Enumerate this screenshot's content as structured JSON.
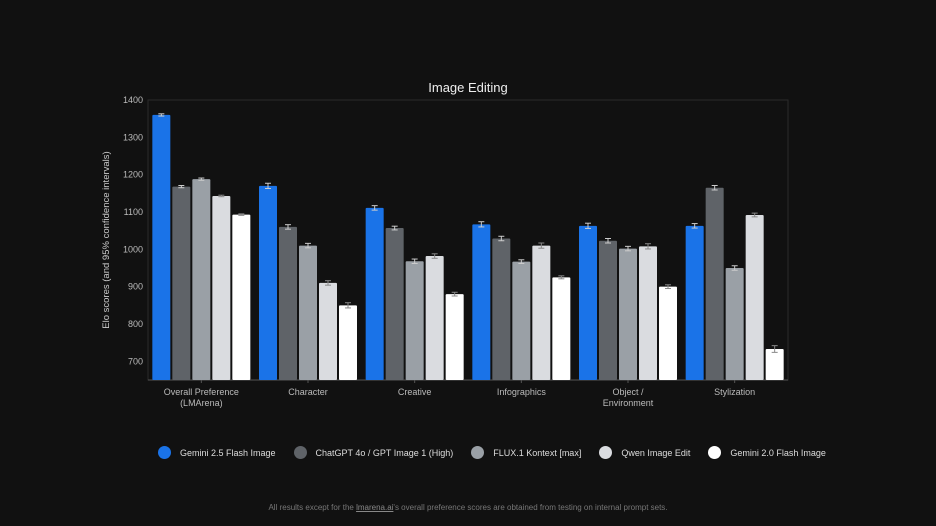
{
  "chart_data": {
    "type": "bar",
    "title": "Image Editing",
    "ylabel": "Elo scores (and 95% confidence intervals)",
    "xlabel": "",
    "ylim": [
      650,
      1400
    ],
    "yticks": [
      700,
      800,
      900,
      1000,
      1100,
      1200,
      1300,
      1400
    ],
    "grid": false,
    "legend_placement": "bottom",
    "categories": [
      [
        "Overall Preference",
        "(LMArena)"
      ],
      [
        "Character"
      ],
      [
        "Creative"
      ],
      [
        "Infographics"
      ],
      [
        "Object /",
        "Environment"
      ],
      [
        "Stylization"
      ]
    ],
    "series": [
      {
        "name": "Gemini 2.5 Flash Image",
        "color": "#1a73e8",
        "values": [
          1360,
          1170,
          1111,
          1067,
          1063,
          1063
        ],
        "err": [
          3,
          7,
          6,
          7,
          7,
          6
        ]
      },
      {
        "name": "ChatGPT 4o / GPT Image 1 (High)",
        "color": "#5f6368",
        "values": [
          1168,
          1060,
          1057,
          1029,
          1023,
          1165
        ],
        "err": [
          3,
          6,
          5,
          6,
          6,
          6
        ]
      },
      {
        "name": "FLUX.1 Kontext [max]",
        "color": "#9aa0a6",
        "values": [
          1188,
          1010,
          968,
          967,
          1002,
          950
        ],
        "err": [
          3,
          6,
          6,
          5,
          6,
          6
        ]
      },
      {
        "name": "Qwen Image Edit",
        "color": "#dadce0",
        "values": [
          1143,
          910,
          982,
          1010,
          1008,
          1092
        ],
        "err": [
          2,
          6,
          6,
          7,
          7,
          5
        ]
      },
      {
        "name": "Gemini 2.0 Flash Image",
        "color": "#ffffff",
        "values": [
          1093,
          850,
          880,
          925,
          900,
          733
        ],
        "err": [
          2,
          7,
          5,
          4,
          5,
          9
        ]
      }
    ]
  },
  "footnote": {
    "before": "All results except for the ",
    "link": "lmarena.ai",
    "after": "'s overall preference scores are obtained from testing on internal prompt sets."
  }
}
